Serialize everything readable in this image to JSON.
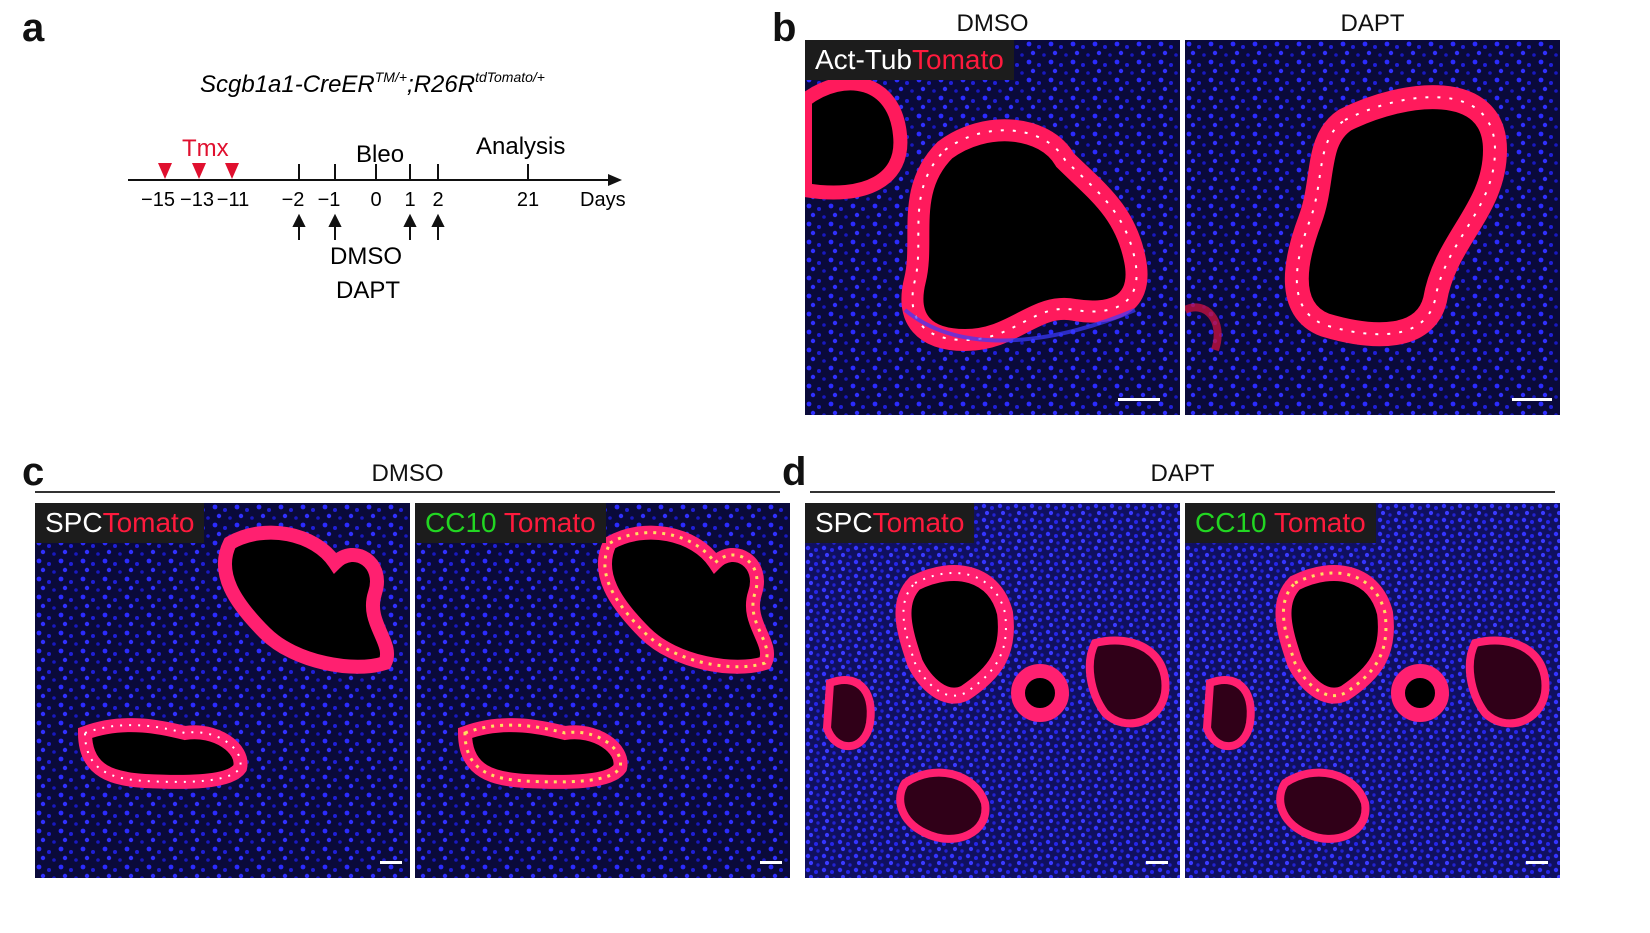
{
  "panels": {
    "a": {
      "label": "a",
      "genotype": {
        "part1": "Scgb1a1-CreER",
        "sup1": "TM/+",
        "part2": ";R26R",
        "sup2": "tdTomato/+"
      },
      "tmx_label": "Tmx",
      "bleo_label": "Bleo",
      "analysis_label": "Analysis",
      "days_label": "Days",
      "ticks": [
        "−15",
        "−13",
        "−11",
        "−2",
        "−1",
        "0",
        "1",
        "2",
        "21"
      ],
      "treatment_labels": [
        "DMSO",
        "DAPT"
      ]
    },
    "b": {
      "label": "b",
      "col_titles": [
        "DMSO",
        "DAPT"
      ],
      "stain_white": "Act-Tub",
      "stain_red": "Tomato"
    },
    "c": {
      "label": "c",
      "title": "DMSO",
      "stain1_white": "SPC",
      "stain1_red": "Tomato",
      "stain2_green": "CC10",
      "stain2_red": "Tomato"
    },
    "d": {
      "label": "d",
      "title": "DAPT",
      "stain1_white": "SPC",
      "stain1_red": "Tomato",
      "stain2_green": "CC10",
      "stain2_red": "Tomato"
    }
  },
  "colors": {
    "tmx_marker": "#e0102f",
    "tomato": "#ff1a3d",
    "cc10": "#22d622",
    "nuclei": "#1a1aff",
    "background": "#050510"
  }
}
